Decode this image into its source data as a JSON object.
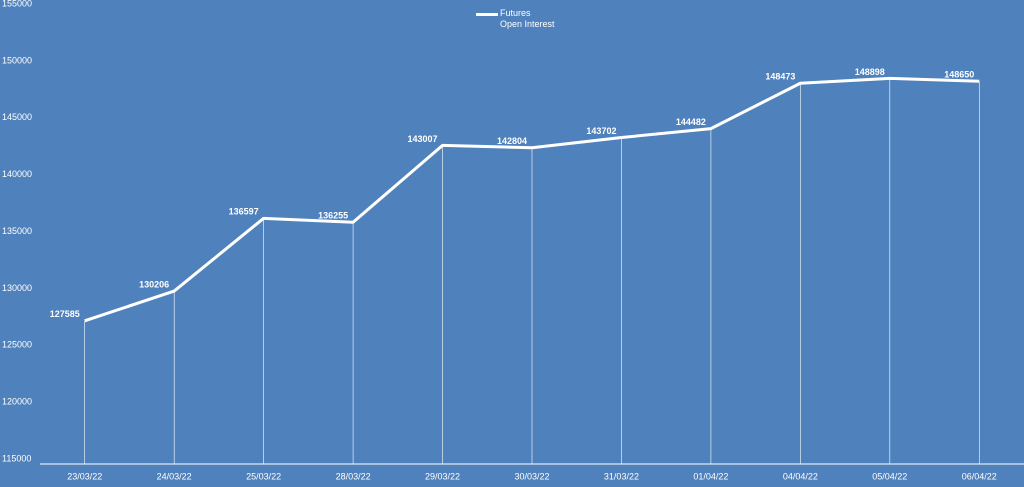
{
  "chart_data": {
    "type": "line",
    "categories": [
      "23/03/22",
      "24/03/22",
      "25/03/22",
      "28/03/22",
      "29/03/22",
      "30/03/22",
      "31/03/22",
      "01/04/22",
      "04/04/22",
      "05/04/22",
      "06/04/22"
    ],
    "series": [
      {
        "name": "Futures Open Interest",
        "color": "#ffffff",
        "values": [
          127585,
          130206,
          136597,
          136255,
          143007,
          142804,
          143702,
          144482,
          148473,
          148898,
          148650
        ]
      }
    ],
    "ylim": [
      115000,
      155000
    ],
    "yticks": [
      115000,
      120000,
      125000,
      130000,
      135000,
      140000,
      145000,
      150000,
      155000
    ],
    "drop_lines": true
  }
}
